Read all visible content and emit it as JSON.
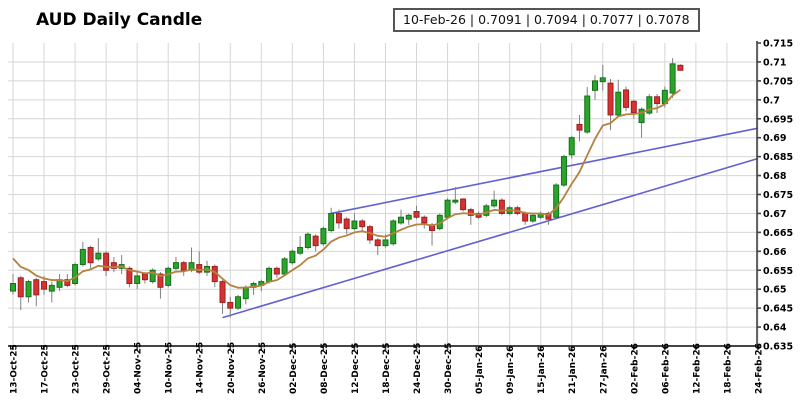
{
  "header": {
    "title": "AUD Daily Candle",
    "quote_box": "10-Feb-26 | 0.7091 | 0.7094 | 0.7077 | 0.7078"
  },
  "chart_data": {
    "type": "candlestick",
    "title": "AUD Daily Candle",
    "last_quote": {
      "date": "10-Feb-26",
      "open": 0.7091,
      "high": 0.7094,
      "low": 0.7077,
      "close": 0.7078
    },
    "y_axis": {
      "min": 0.635,
      "max": 0.715,
      "step": 0.005,
      "tick_labels": [
        "0.715",
        "0.71",
        "0.705",
        "0.7",
        "0.695",
        "0.69",
        "0.685",
        "0.68",
        "0.675",
        "0.67",
        "0.665",
        "0.66",
        "0.655",
        "0.65",
        "0.645",
        "0.64",
        "0.635"
      ]
    },
    "x_axis": {
      "ticks_every_n_candles": 4,
      "tick_labels": [
        "13-Oct-25",
        "17-Oct-25",
        "23-Oct-25",
        "29-Oct-25",
        "04-Nov-25",
        "10-Nov-25",
        "14-Nov-25",
        "20-Nov-25",
        "26-Nov-25",
        "02-Dec-25",
        "08-Dec-25",
        "12-Dec-25",
        "18-Dec-25",
        "24-Dec-25",
        "30-Dec-25",
        "05-Jan-26",
        "09-Jan-26",
        "15-Jan-26",
        "21-Jan-26",
        "27-Jan-26",
        "02-Feb-26",
        "06-Feb-26",
        "12-Feb-26",
        "18-Feb-26",
        "24-Feb-26"
      ]
    },
    "columns": [
      "date",
      "open",
      "high",
      "low",
      "close"
    ],
    "candles": [
      [
        "13-Oct-25",
        0.6495,
        0.654,
        0.6485,
        0.6515
      ],
      [
        "14-Oct-25",
        0.653,
        0.6535,
        0.6445,
        0.648
      ],
      [
        "15-Oct-25",
        0.648,
        0.6525,
        0.6465,
        0.652
      ],
      [
        "16-Oct-25",
        0.6525,
        0.653,
        0.6455,
        0.6485
      ],
      [
        "17-Oct-25",
        0.652,
        0.6535,
        0.6485,
        0.65
      ],
      [
        "20-Oct-25",
        0.6495,
        0.652,
        0.6465,
        0.651
      ],
      [
        "21-Oct-25",
        0.6505,
        0.654,
        0.6495,
        0.6525
      ],
      [
        "22-Oct-25",
        0.6525,
        0.654,
        0.6505,
        0.651
      ],
      [
        "23-Oct-25",
        0.6515,
        0.657,
        0.651,
        0.6565
      ],
      [
        "24-Oct-25",
        0.6565,
        0.6625,
        0.656,
        0.6605
      ],
      [
        "27-Oct-25",
        0.661,
        0.6615,
        0.6555,
        0.657
      ],
      [
        "28-Oct-25",
        0.658,
        0.6635,
        0.6575,
        0.6595
      ],
      [
        "29-Oct-25",
        0.6595,
        0.66,
        0.6535,
        0.655
      ],
      [
        "30-Oct-25",
        0.657,
        0.6585,
        0.6545,
        0.6555
      ],
      [
        "31-Oct-25",
        0.6555,
        0.659,
        0.654,
        0.6565
      ],
      [
        "03-Nov-25",
        0.6555,
        0.656,
        0.6505,
        0.6515
      ],
      [
        "04-Nov-25",
        0.6515,
        0.6545,
        0.65,
        0.6535
      ],
      [
        "05-Nov-25",
        0.654,
        0.6545,
        0.6515,
        0.6525
      ],
      [
        "06-Nov-25",
        0.652,
        0.6555,
        0.6515,
        0.655
      ],
      [
        "07-Nov-25",
        0.654,
        0.6545,
        0.6475,
        0.6505
      ],
      [
        "10-Nov-25",
        0.651,
        0.656,
        0.6505,
        0.6555
      ],
      [
        "11-Nov-25",
        0.6555,
        0.6585,
        0.655,
        0.657
      ],
      [
        "12-Nov-25",
        0.657,
        0.6575,
        0.6535,
        0.655
      ],
      [
        "13-Nov-25",
        0.655,
        0.661,
        0.6545,
        0.657
      ],
      [
        "14-Nov-25",
        0.6565,
        0.66,
        0.654,
        0.6545
      ],
      [
        "17-Nov-25",
        0.6545,
        0.6575,
        0.6535,
        0.656
      ],
      [
        "18-Nov-25",
        0.656,
        0.6565,
        0.6505,
        0.652
      ],
      [
        "19-Nov-25",
        0.652,
        0.6525,
        0.6435,
        0.6465
      ],
      [
        "20-Nov-25",
        0.6465,
        0.648,
        0.6425,
        0.645
      ],
      [
        "21-Nov-25",
        0.645,
        0.6485,
        0.6445,
        0.648
      ],
      [
        "24-Nov-25",
        0.6475,
        0.651,
        0.646,
        0.6505
      ],
      [
        "25-Nov-25",
        0.6505,
        0.652,
        0.6485,
        0.6515
      ],
      [
        "26-Nov-25",
        0.651,
        0.6525,
        0.6495,
        0.652
      ],
      [
        "27-Nov-25",
        0.652,
        0.656,
        0.6515,
        0.6555
      ],
      [
        "28-Nov-25",
        0.6555,
        0.656,
        0.653,
        0.654
      ],
      [
        "01-Dec-25",
        0.654,
        0.6585,
        0.6535,
        0.658
      ],
      [
        "02-Dec-25",
        0.657,
        0.6605,
        0.6565,
        0.66
      ],
      [
        "03-Dec-25",
        0.6595,
        0.664,
        0.659,
        0.661
      ],
      [
        "04-Dec-25",
        0.661,
        0.665,
        0.6605,
        0.6645
      ],
      [
        "05-Dec-25",
        0.664,
        0.6645,
        0.66,
        0.6615
      ],
      [
        "08-Dec-25",
        0.662,
        0.6665,
        0.6615,
        0.666
      ],
      [
        "09-Dec-25",
        0.6655,
        0.6715,
        0.665,
        0.67
      ],
      [
        "10-Dec-25",
        0.67,
        0.671,
        0.666,
        0.6675
      ],
      [
        "11-Dec-25",
        0.6685,
        0.669,
        0.6645,
        0.666
      ],
      [
        "12-Dec-25",
        0.666,
        0.67,
        0.6655,
        0.668
      ],
      [
        "15-Dec-25",
        0.668,
        0.6685,
        0.665,
        0.6665
      ],
      [
        "16-Dec-25",
        0.6665,
        0.667,
        0.662,
        0.663
      ],
      [
        "17-Dec-25",
        0.663,
        0.6635,
        0.659,
        0.6615
      ],
      [
        "18-Dec-25",
        0.6615,
        0.6645,
        0.661,
        0.663
      ],
      [
        "19-Dec-25",
        0.662,
        0.6685,
        0.6615,
        0.668
      ],
      [
        "22-Dec-25",
        0.6675,
        0.671,
        0.667,
        0.669
      ],
      [
        "23-Dec-25",
        0.6685,
        0.67,
        0.667,
        0.6695
      ],
      [
        "24-Dec-25",
        0.6705,
        0.672,
        0.6685,
        0.669
      ],
      [
        "25-Dec-25",
        0.669,
        0.6695,
        0.666,
        0.6675
      ],
      [
        "26-Dec-25",
        0.667,
        0.6675,
        0.6615,
        0.6655
      ],
      [
        "29-Dec-25",
        0.666,
        0.67,
        0.6655,
        0.6695
      ],
      [
        "30-Dec-25",
        0.669,
        0.674,
        0.6685,
        0.6735
      ],
      [
        "31-Dec-25",
        0.673,
        0.677,
        0.6725,
        0.6735
      ],
      [
        "01-Jan-26",
        0.6738,
        0.674,
        0.6705,
        0.671
      ],
      [
        "02-Jan-26",
        0.671,
        0.6715,
        0.667,
        0.6695
      ],
      [
        "05-Jan-26",
        0.67,
        0.6705,
        0.6685,
        0.669
      ],
      [
        "06-Jan-26",
        0.6695,
        0.6725,
        0.669,
        0.672
      ],
      [
        "07-Jan-26",
        0.672,
        0.676,
        0.6715,
        0.6735
      ],
      [
        "08-Jan-26",
        0.6735,
        0.674,
        0.6695,
        0.67
      ],
      [
        "09-Jan-26",
        0.67,
        0.672,
        0.6695,
        0.6715
      ],
      [
        "12-Jan-26",
        0.6715,
        0.672,
        0.6695,
        0.67
      ],
      [
        "13-Jan-26",
        0.67,
        0.6705,
        0.667,
        0.668
      ],
      [
        "14-Jan-26",
        0.668,
        0.67,
        0.6675,
        0.6695
      ],
      [
        "15-Jan-26",
        0.669,
        0.6705,
        0.6685,
        0.67
      ],
      [
        "16-Jan-26",
        0.67,
        0.6705,
        0.667,
        0.6685
      ],
      [
        "19-Jan-26",
        0.669,
        0.678,
        0.6685,
        0.6775
      ],
      [
        "20-Jan-26",
        0.6775,
        0.6855,
        0.677,
        0.685
      ],
      [
        "21-Jan-26",
        0.6855,
        0.6905,
        0.6845,
        0.69
      ],
      [
        "22-Jan-26",
        0.6935,
        0.696,
        0.689,
        0.692
      ],
      [
        "23-Jan-26",
        0.6915,
        0.7034,
        0.691,
        0.701
      ],
      [
        "26-Jan-26",
        0.7025,
        0.7065,
        0.7,
        0.705
      ],
      [
        "27-Jan-26",
        0.7048,
        0.7092,
        0.7025,
        0.7058
      ],
      [
        "28-Jan-26",
        0.7044,
        0.7055,
        0.692,
        0.696
      ],
      [
        "29-Jan-26",
        0.696,
        0.7053,
        0.6955,
        0.702
      ],
      [
        "30-Jan-26",
        0.7026,
        0.7035,
        0.697,
        0.698
      ],
      [
        "02-Feb-26",
        0.6996,
        0.7,
        0.695,
        0.6966
      ],
      [
        "03-Feb-26",
        0.694,
        0.698,
        0.69,
        0.6975
      ],
      [
        "04-Feb-26",
        0.6965,
        0.7015,
        0.696,
        0.7008
      ],
      [
        "05-Feb-26",
        0.7008,
        0.7015,
        0.6965,
        0.699
      ],
      [
        "06-Feb-26",
        0.699,
        0.7035,
        0.698,
        0.7025
      ],
      [
        "09-Feb-26",
        0.7018,
        0.711,
        0.7005,
        0.7095
      ],
      [
        "10-Feb-26",
        0.7091,
        0.7094,
        0.7077,
        0.7078
      ]
    ],
    "moving_average": {
      "type": "ema",
      "alpha": 0.22,
      "seed": 0.66,
      "color": "#b5823f"
    },
    "trendlines": [
      {
        "name": "lower-channel-line",
        "x1_slot": 27,
        "price1": 0.6425,
        "x2_slot": 96,
        "price2": 0.6845,
        "color": "#6161d1"
      },
      {
        "name": "upper-channel-line",
        "x1_slot": 41,
        "price1": 0.67,
        "x2_slot": 96,
        "price2": 0.6925,
        "color": "#6161d1"
      }
    ],
    "colors": {
      "up": "#2aa52a",
      "up_border": "#15701c",
      "down": "#d63232",
      "down_border": "#9c1f1f",
      "wick": "#808080",
      "grid": "#d6d6d6",
      "axis": "#444444"
    }
  }
}
